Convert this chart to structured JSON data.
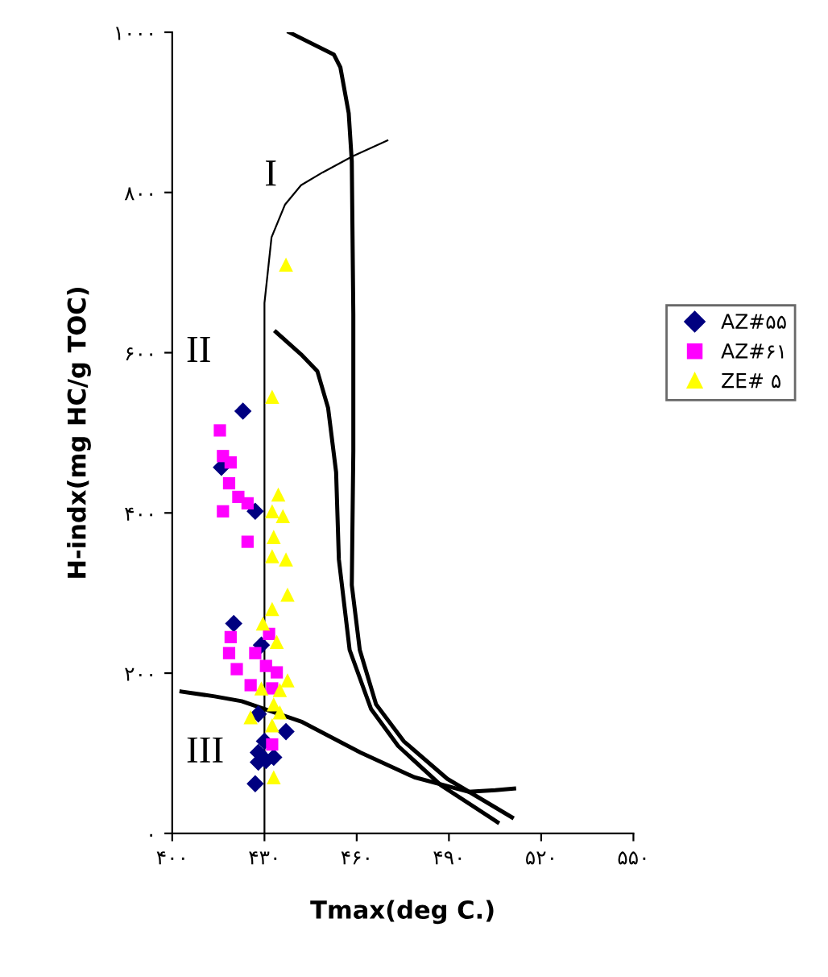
{
  "chart_data": {
    "type": "scatter",
    "xlabel": "Tmax(deg C.)",
    "ylabel": "H-indx(mg HC/g TOC)",
    "xlim": [
      400,
      550
    ],
    "ylim": [
      0,
      1000
    ],
    "xticks": [
      {
        "value": 400,
        "label": "۴۰۰"
      },
      {
        "value": 430,
        "label": "۴۳۰"
      },
      {
        "value": 460,
        "label": "۴۶۰"
      },
      {
        "value": 490,
        "label": "۴۹۰"
      },
      {
        "value": 520,
        "label": "۵۲۰"
      },
      {
        "value": 550,
        "label": "۵۵۰"
      }
    ],
    "yticks": [
      {
        "value": 0,
        "label": "۰"
      },
      {
        "value": 200,
        "label": "۲۰۰"
      },
      {
        "value": 400,
        "label": "۴۰۰"
      },
      {
        "value": 600,
        "label": "۶۰۰"
      },
      {
        "value": 800,
        "label": "۸۰۰"
      },
      {
        "value": 1000,
        "label": "۱۰۰۰"
      }
    ],
    "grid": false,
    "legend": "right",
    "annotations": [
      "I",
      "II",
      "III"
    ],
    "series": [
      {
        "type": "line",
        "color": "#000000",
        "marker": "none",
        "x": [
          438,
          452.6,
          454.7,
          457.4,
          458.4,
          458.9,
          458.9,
          458.4,
          461,
          466.3,
          475.3,
          489.5,
          510.5
        ],
        "values": [
          1000,
          972,
          956,
          899,
          839,
          648,
          477,
          310,
          229,
          161,
          115,
          68,
          20
        ]
      },
      {
        "type": "line",
        "color": "#000000",
        "marker": "none",
        "x": [
          433.7,
          441.9,
          447.2,
          450.7,
          453.3,
          454.2,
          457.7,
          464.7,
          473.5,
          487.4,
          505.8
        ],
        "values": [
          626,
          598,
          577,
          531,
          451,
          342,
          229,
          155,
          109,
          60,
          14
        ]
      },
      {
        "type": "line",
        "color": "#000000",
        "marker": "none",
        "x": [
          430,
          430,
          432.3,
          436.7,
          441.9,
          448.9,
          458.6,
          470
        ],
        "values": [
          0,
          662,
          744,
          785,
          809,
          825,
          845,
          865
        ]
      },
      {
        "type": "line",
        "color": "#000000",
        "marker": "none",
        "x": [
          403,
          413.8,
          422.6,
          442.3,
          461.2,
          478.8,
          496.3,
          505.1,
          511.2
        ],
        "values": [
          177,
          171,
          165,
          139,
          101,
          70,
          52,
          54,
          56
        ]
      },
      {
        "name": "AZ#۵۵",
        "color": "#000080",
        "marker": "diamond",
        "x": [
          423,
          416,
          427,
          420,
          429,
          428,
          430,
          428,
          433,
          428,
          437,
          427,
          430.5
        ],
        "values": [
          527,
          457,
          402,
          262,
          235,
          149,
          115,
          101,
          95,
          89,
          127,
          62,
          91
        ]
      },
      {
        "name": "AZ#۶۱",
        "color": "#ff00ff",
        "marker": "square",
        "x": [
          415.5,
          416.5,
          419,
          418.5,
          421.5,
          424.5,
          416.5,
          424.5,
          419,
          418.5,
          421,
          427,
          430.5,
          434,
          425.5,
          432.5,
          432.5,
          431.5
        ],
        "values": [
          503,
          471,
          463,
          437,
          420,
          412,
          402,
          364,
          245,
          225,
          205,
          225,
          209,
          201,
          185,
          181,
          111,
          249
        ]
      },
      {
        "name": "ZE# ۵",
        "color": "#ffff00",
        "marker": "triangle",
        "x": [
          437,
          432.5,
          434.5,
          432.5,
          436,
          433,
          432.5,
          437,
          437.5,
          432.5,
          429.5,
          434,
          437.5,
          435,
          429,
          433,
          425.5,
          435,
          432.5,
          433
        ],
        "values": [
          710,
          545,
          423,
          402,
          396,
          370,
          346,
          342,
          298,
          280,
          262,
          239,
          191,
          179,
          181,
          161,
          145,
          151,
          135,
          70
        ]
      }
    ]
  }
}
